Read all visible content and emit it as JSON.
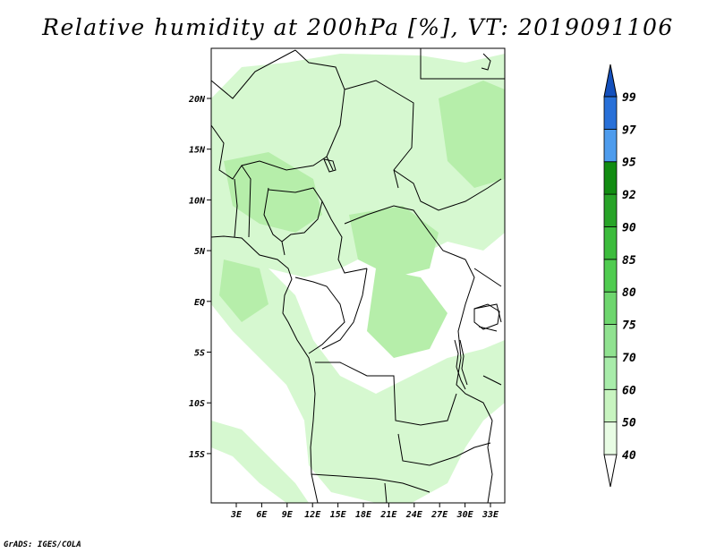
{
  "title": "Relative humidity at 200hPa [%], VT: 2019091106",
  "footer": "GrADS: IGES/COLA",
  "map": {
    "region": "Central Africa",
    "lat_ticks": [
      "20N",
      "15N",
      "10N",
      "5N",
      "EQ",
      "5S",
      "10S",
      "15S"
    ],
    "lon_ticks": [
      "3E",
      "6E",
      "9E",
      "12E",
      "15E",
      "18E",
      "21E",
      "24E",
      "27E",
      "30E",
      "33E"
    ],
    "field": "relative humidity",
    "level": "200hPa",
    "units": "%"
  },
  "colorbar": {
    "labels": [
      "40",
      "50",
      "60",
      "70",
      "75",
      "80",
      "85",
      "90",
      "92",
      "95",
      "97",
      "99"
    ],
    "colors": [
      "#ffffff",
      "#e8fce4",
      "#c8f4c0",
      "#a8ecaa",
      "#90e290",
      "#6ed66e",
      "#50cc50",
      "#3cbc3c",
      "#28a428",
      "#128c12",
      "#4e9ced",
      "#2870d8",
      "#1450bc"
    ]
  },
  "colors": {
    "land": "#ffffff",
    "light_green": "#d6f8d0",
    "mid_green": "#b6eeaa",
    "border": "#000000"
  }
}
